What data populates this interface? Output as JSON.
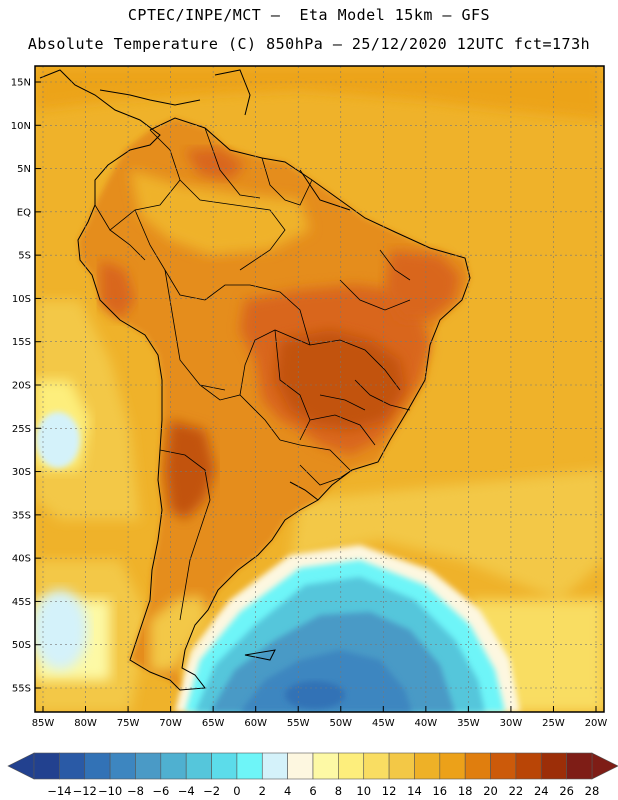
{
  "header": {
    "title_line1": "CPTEC/INPE/MCT –  Eta Model 15km – GFS",
    "title_line2": "Absolute Temperature (C) 850hPa – 25/12/2020 12UTC fct=173h"
  },
  "map": {
    "lat_labels": [
      "15N",
      "10N",
      "5N",
      "EQ",
      "5S",
      "10S",
      "15S",
      "20S",
      "25S",
      "30S",
      "35S",
      "40S",
      "45S",
      "50S",
      "55S"
    ],
    "lon_labels": [
      "85W",
      "80W",
      "75W",
      "70W",
      "65W",
      "60W",
      "55W",
      "50W",
      "45W",
      "40W",
      "35W",
      "30W",
      "25W",
      "20W"
    ]
  },
  "colorbar": {
    "labels": [
      "-14",
      "-12",
      "-10",
      "-8",
      "-6",
      "-4",
      "-2",
      "0",
      "2",
      "4",
      "6",
      "8",
      "10",
      "12",
      "14",
      "16",
      "18",
      "20",
      "22",
      "24",
      "26",
      "28"
    ],
    "colors": [
      "#22418f",
      "#2a5aa6",
      "#3272b6",
      "#3d86c0",
      "#4a9ac6",
      "#4fb0d0",
      "#55c6db",
      "#5cdcea",
      "#6ef5f8",
      "#d4f2fa",
      "#fdf7e0",
      "#fdf9a5",
      "#fdee7c",
      "#f9dd62",
      "#f3c846",
      "#eeb127",
      "#eca119",
      "#e07e0e",
      "#cc5a0a",
      "#b94506",
      "#9c2e08",
      "#7e1d16"
    ],
    "low_color": "#22418f",
    "high_color": "#7e1d16"
  },
  "colors": {
    "ocean_warm": "#efb22a",
    "ocean_mid": "#f3c846",
    "land_hot": "#d9661b",
    "land_very_hot": "#b94506",
    "cold_south": "#4fb0d0",
    "coldest": "#3272b6"
  }
}
